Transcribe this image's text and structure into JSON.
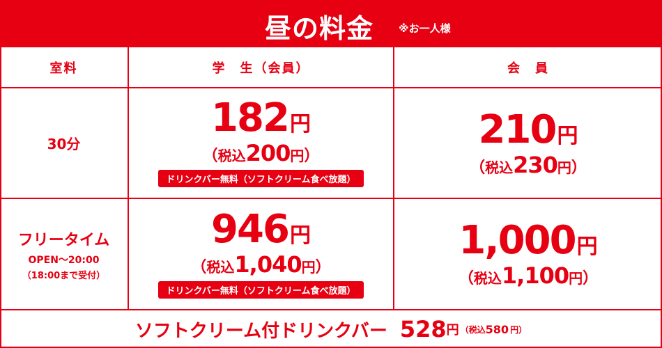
{
  "colors": {
    "accent": "#e60012",
    "on_accent": "#ffffff"
  },
  "title": {
    "text": "昼の料金",
    "note": "※お一人様"
  },
  "headers": {
    "room_fee": "室料",
    "student": "学　生（会員）",
    "member": "会　員"
  },
  "rows": [
    {
      "label": "30分",
      "student": {
        "price": "182",
        "yen": "円",
        "tax_open": "（",
        "tax_label": "税込",
        "tax_price": "200",
        "tax_yen": "円",
        "tax_close": "）",
        "badge": "ドリンクバー無料（ソフトクリーム食べ放題）"
      },
      "member": {
        "price": "210",
        "yen": "円",
        "tax_open": "（",
        "tax_label": "税込",
        "tax_price": "230",
        "tax_yen": "円",
        "tax_close": "）"
      }
    },
    {
      "label": "フリータイム",
      "sub1": "OPEN～20:00",
      "sub2": "（18:00まで受付）",
      "student": {
        "price": "946",
        "yen": "円",
        "tax_open": "（",
        "tax_label": "税込",
        "tax_price": "1,040",
        "tax_yen": "円",
        "tax_close": "）",
        "badge": "ドリンクバー無料（ソフトクリーム食べ放題）"
      },
      "member": {
        "price": "1,000",
        "yen": "円",
        "tax_open": "（",
        "tax_label": "税込",
        "tax_price": "1,100",
        "tax_yen": "円",
        "tax_close": "）"
      }
    }
  ],
  "footer": {
    "text": "ソフトクリーム付ドリンクバー",
    "price": "528",
    "yen": "円",
    "tax_open": "（税込",
    "tax_price": "580",
    "tax_yen": "円）"
  }
}
